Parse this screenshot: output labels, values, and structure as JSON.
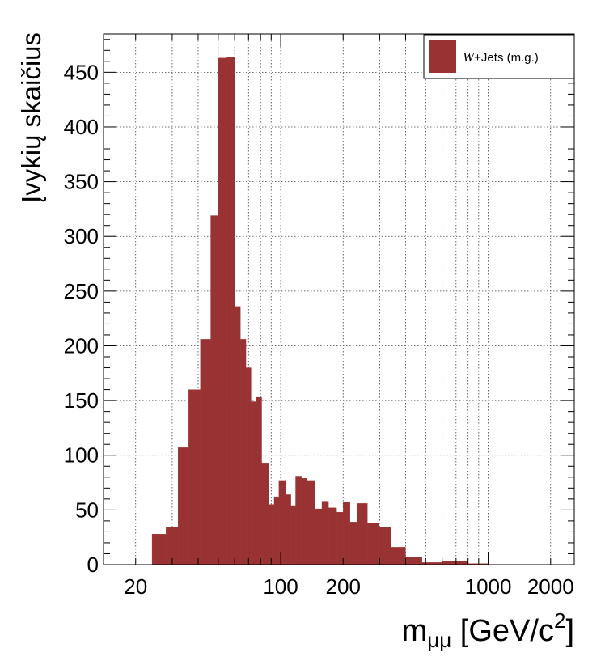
{
  "chart_data": {
    "type": "bar",
    "title": "",
    "xlabel": "mμμ [GeV/c2]",
    "xlabel_parts": {
      "main": "m",
      "sub": "μμ",
      "unit_pre": " [GeV/c",
      "sup": "2",
      "unit_post": "]"
    },
    "ylabel": "Įvykių skaičius",
    "x_scale": "log",
    "xlim": [
      14,
      2600
    ],
    "ylim": [
      0,
      485
    ],
    "grid": true,
    "legend_placement": "top-right",
    "x_tick_labels": [
      "20",
      "100",
      "200",
      "1000",
      "2000"
    ],
    "x_ticks": [
      20,
      100,
      200,
      1000,
      2000
    ],
    "y_tick_labels": [
      "0",
      "50",
      "100",
      "150",
      "200",
      "250",
      "300",
      "350",
      "400",
      "450"
    ],
    "y_ticks": [
      0,
      50,
      100,
      150,
      200,
      250,
      300,
      350,
      400,
      450
    ],
    "series": [
      {
        "name": "W+Jets (m.g.)",
        "name_parts": {
          "italic": "W",
          "rest": "+Jets (m.g.)"
        },
        "color": "#993333",
        "bins": [
          {
            "x0": 24,
            "x1": 28,
            "value": 28
          },
          {
            "x0": 28,
            "x1": 32,
            "value": 34
          },
          {
            "x0": 32,
            "x1": 36,
            "value": 107
          },
          {
            "x0": 36,
            "x1": 41,
            "value": 160
          },
          {
            "x0": 41,
            "x1": 46,
            "value": 206
          },
          {
            "x0": 46,
            "x1": 50,
            "value": 319
          },
          {
            "x0": 50,
            "x1": 55,
            "value": 463
          },
          {
            "x0": 55,
            "x1": 60,
            "value": 464
          },
          {
            "x0": 60,
            "x1": 64,
            "value": 236
          },
          {
            "x0": 64,
            "x1": 68,
            "value": 206
          },
          {
            "x0": 68,
            "x1": 72,
            "value": 180
          },
          {
            "x0": 72,
            "x1": 76,
            "value": 149
          },
          {
            "x0": 76,
            "x1": 81,
            "value": 153
          },
          {
            "x0": 81,
            "x1": 88,
            "value": 93
          },
          {
            "x0": 88,
            "x1": 93,
            "value": 55
          },
          {
            "x0": 93,
            "x1": 98,
            "value": 62
          },
          {
            "x0": 98,
            "x1": 106,
            "value": 77
          },
          {
            "x0": 106,
            "x1": 112,
            "value": 64
          },
          {
            "x0": 112,
            "x1": 118,
            "value": 54
          },
          {
            "x0": 118,
            "x1": 126,
            "value": 81
          },
          {
            "x0": 126,
            "x1": 134,
            "value": 79
          },
          {
            "x0": 134,
            "x1": 146,
            "value": 77
          },
          {
            "x0": 146,
            "x1": 158,
            "value": 51
          },
          {
            "x0": 158,
            "x1": 170,
            "value": 58
          },
          {
            "x0": 170,
            "x1": 186,
            "value": 52
          },
          {
            "x0": 186,
            "x1": 200,
            "value": 48
          },
          {
            "x0": 200,
            "x1": 216,
            "value": 57
          },
          {
            "x0": 216,
            "x1": 234,
            "value": 39
          },
          {
            "x0": 234,
            "x1": 262,
            "value": 56
          },
          {
            "x0": 262,
            "x1": 296,
            "value": 38
          },
          {
            "x0": 296,
            "x1": 340,
            "value": 34
          },
          {
            "x0": 340,
            "x1": 400,
            "value": 16
          },
          {
            "x0": 400,
            "x1": 480,
            "value": 7
          },
          {
            "x0": 480,
            "x1": 600,
            "value": 2
          },
          {
            "x0": 600,
            "x1": 700,
            "value": 3
          },
          {
            "x0": 700,
            "x1": 800,
            "value": 3
          },
          {
            "x0": 800,
            "x1": 1000,
            "value": 1
          }
        ]
      }
    ]
  }
}
